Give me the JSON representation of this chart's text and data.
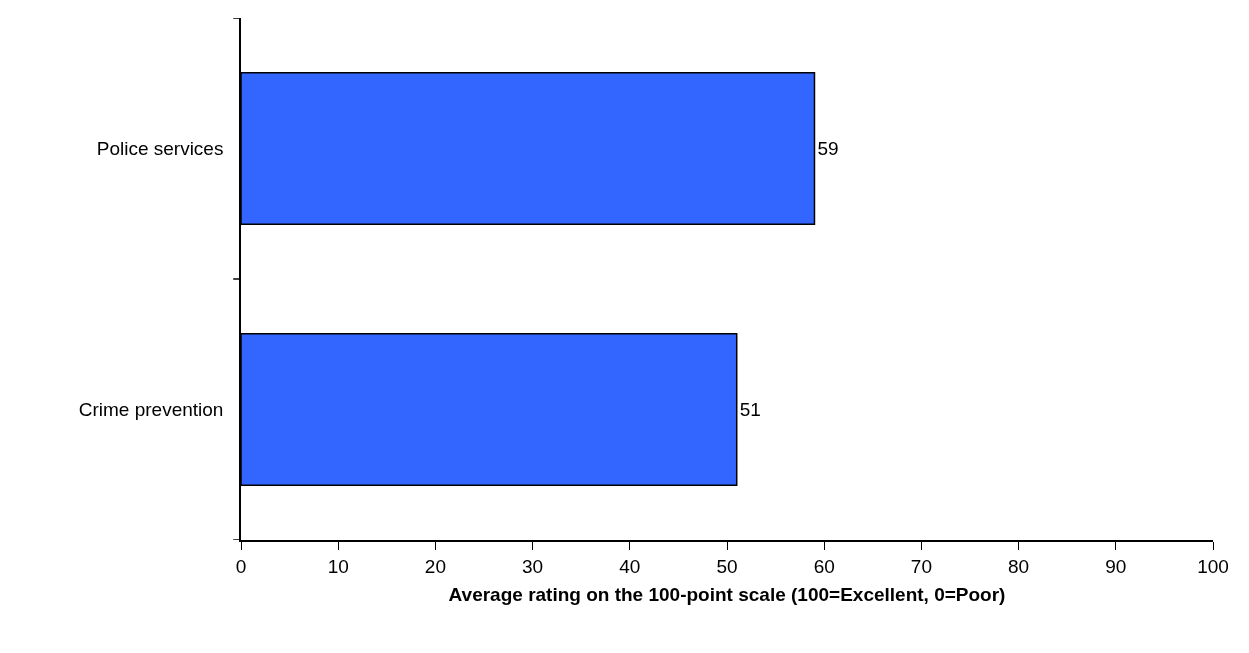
{
  "chart_data": {
    "type": "bar",
    "orientation": "horizontal",
    "categories": [
      "Police services",
      "Crime prevention"
    ],
    "values": [
      59,
      51
    ],
    "color": "#3366ff",
    "xlabel": "Average rating on the 100-point scale (100=Excellent, 0=Poor)",
    "xlim": [
      0,
      100
    ],
    "xticks": [
      0,
      10,
      20,
      30,
      40,
      50,
      60,
      70,
      80,
      90,
      100
    ],
    "grid": false,
    "data_labels": true
  }
}
